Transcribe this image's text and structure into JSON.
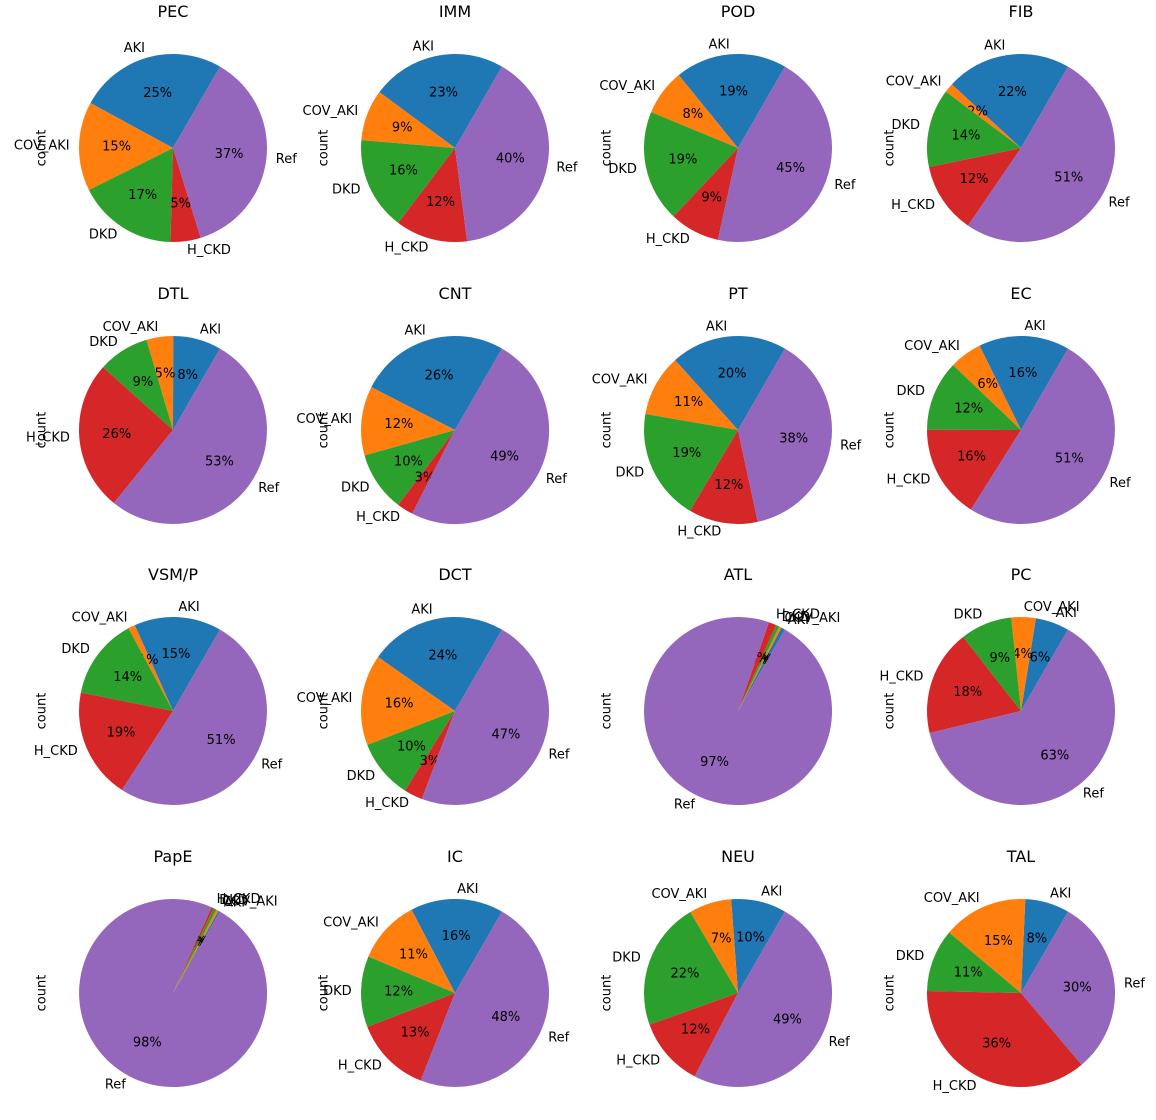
{
  "chart_data": {
    "type": "pie",
    "categories": [
      "AKI",
      "COV_AKI",
      "DKD",
      "H_CKD",
      "Ref"
    ],
    "colors": [
      "#1f77b4",
      "#ff7f0e",
      "#2ca02c",
      "#d62728",
      "#9467bd"
    ],
    "ylabel": "count",
    "grid": "4x4",
    "charts": [
      {
        "title": "PEC",
        "values": [
          25.4,
          15.3,
          17.2,
          5.2,
          36.9
        ],
        "pct_labels": [
          "25%",
          "15%",
          "17%",
          "5%",
          "37%"
        ]
      },
      {
        "title": "IMM",
        "values": [
          23.2,
          8.8,
          16.0,
          12.4,
          39.6
        ],
        "pct_labels": [
          "23%",
          "9%",
          "16%",
          "12%",
          "40%"
        ]
      },
      {
        "title": "POD",
        "values": [
          19.2,
          7.9,
          19.2,
          8.6,
          45.1
        ],
        "pct_labels": [
          "19%",
          "8%",
          "19%",
          "9%",
          "45%"
        ]
      },
      {
        "title": "FIB",
        "values": [
          21.5,
          1.6,
          13.5,
          12.2,
          51.2
        ],
        "pct_labels": [
          "22%",
          "2%",
          "14%",
          "12%",
          "51%"
        ]
      },
      {
        "title": "DTL",
        "values": [
          8.3,
          4.6,
          8.8,
          25.8,
          52.5
        ],
        "pct_labels": [
          "8%",
          "5%",
          "9%",
          "26%",
          "53%"
        ]
      },
      {
        "title": "CNT",
        "values": [
          25.8,
          11.9,
          10.3,
          2.8,
          49.2
        ],
        "pct_labels": [
          "26%",
          "12%",
          "10%",
          "3%",
          "49%"
        ]
      },
      {
        "title": "PT",
        "values": [
          20.0,
          10.6,
          19.2,
          11.9,
          38.3
        ],
        "pct_labels": [
          "20%",
          "11%",
          "19%",
          "12%",
          "38%"
        ]
      },
      {
        "title": "EC",
        "values": [
          15.6,
          5.6,
          12.1,
          16.1,
          50.6
        ],
        "pct_labels": [
          "16%",
          "6%",
          "12%",
          "16%",
          "51%"
        ]
      },
      {
        "title": "VSM/P",
        "values": [
          15.0,
          1.2,
          14.0,
          19.0,
          50.8
        ],
        "pct_labels": [
          "15%",
          "1%",
          "14%",
          "19%",
          "51%"
        ]
      },
      {
        "title": "DCT",
        "values": [
          23.6,
          15.6,
          10.2,
          3.2,
          47.4
        ],
        "pct_labels": [
          "24%",
          "16%",
          "10%",
          "3%",
          "47%"
        ]
      },
      {
        "title": "ATL",
        "values": [
          0.7,
          0.4,
          0.6,
          1.3,
          97.0
        ],
        "pct_labels": [
          "1%",
          "0%",
          "1%",
          "1%",
          "97%"
        ]
      },
      {
        "title": "PC",
        "values": [
          5.8,
          4.2,
          8.9,
          18.2,
          62.9
        ],
        "pct_labels": [
          "6%",
          "4%",
          "9%",
          "18%",
          "63%"
        ]
      },
      {
        "title": "PapE",
        "values": [
          0.3,
          0.4,
          0.5,
          0.4,
          98.4
        ],
        "pct_labels": [
          "0%",
          "0%",
          "0%",
          "0%",
          "98%"
        ]
      },
      {
        "title": "IC",
        "values": [
          16.0,
          11.0,
          12.2,
          13.2,
          47.6
        ],
        "pct_labels": [
          "16%",
          "11%",
          "12%",
          "13%",
          "48%"
        ]
      },
      {
        "title": "NEU",
        "values": [
          9.5,
          7.3,
          22.0,
          11.9,
          49.3
        ],
        "pct_labels": [
          "10%",
          "7%",
          "22%",
          "12%",
          "49%"
        ]
      },
      {
        "title": "TAL",
        "values": [
          7.6,
          14.6,
          10.8,
          36.5,
          30.5
        ],
        "pct_labels": [
          "8%",
          "15%",
          "11%",
          "36%",
          "30%"
        ]
      }
    ]
  }
}
